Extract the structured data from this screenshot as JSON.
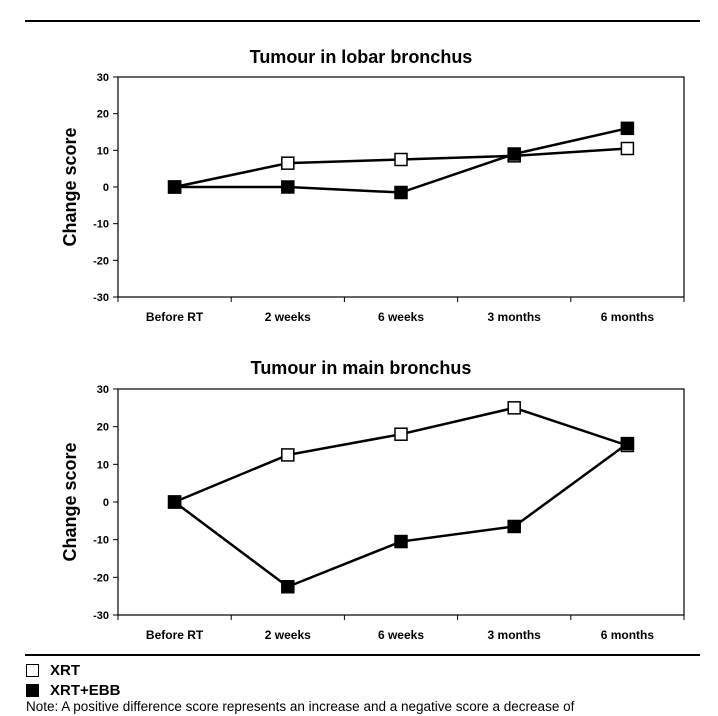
{
  "chart_data": [
    {
      "type": "line",
      "title": "Tumour in lobar bronchus",
      "xlabel": "",
      "ylabel": "Change score",
      "categories": [
        "Before RT",
        "2 weeks",
        "6 weeks",
        "3 months",
        "6 months"
      ],
      "ylim": [
        -30,
        30
      ],
      "yticks": [
        30,
        20,
        10,
        0,
        -10,
        -20,
        -30
      ],
      "series": [
        {
          "name": "XRT",
          "marker": "open-square",
          "values": [
            0,
            6.5,
            7.5,
            8.5,
            10.5
          ]
        },
        {
          "name": "XRT+EBB",
          "marker": "filled-square",
          "values": [
            0,
            0,
            -1.5,
            9,
            16
          ]
        }
      ]
    },
    {
      "type": "line",
      "title": "Tumour in main bronchus",
      "xlabel": "",
      "ylabel": "Change score",
      "categories": [
        "Before RT",
        "2 weeks",
        "6 weeks",
        "3 months",
        "6 months"
      ],
      "ylim": [
        -30,
        30
      ],
      "yticks": [
        30,
        20,
        10,
        0,
        -10,
        -20,
        -30
      ],
      "series": [
        {
          "name": "XRT",
          "marker": "open-square",
          "values": [
            0,
            12.5,
            18,
            25,
            15
          ]
        },
        {
          "name": "XRT+EBB",
          "marker": "filled-square",
          "values": [
            0,
            -22.5,
            -10.5,
            -6.5,
            15.5
          ]
        }
      ]
    }
  ],
  "legend": [
    {
      "label": "XRT",
      "swatch_fill": "#ffffff"
    },
    {
      "label": "XRT+EBB",
      "swatch_fill": "#000000"
    }
  ],
  "note": "Note: A positive difference score represents an increase and a negative score a decrease of"
}
